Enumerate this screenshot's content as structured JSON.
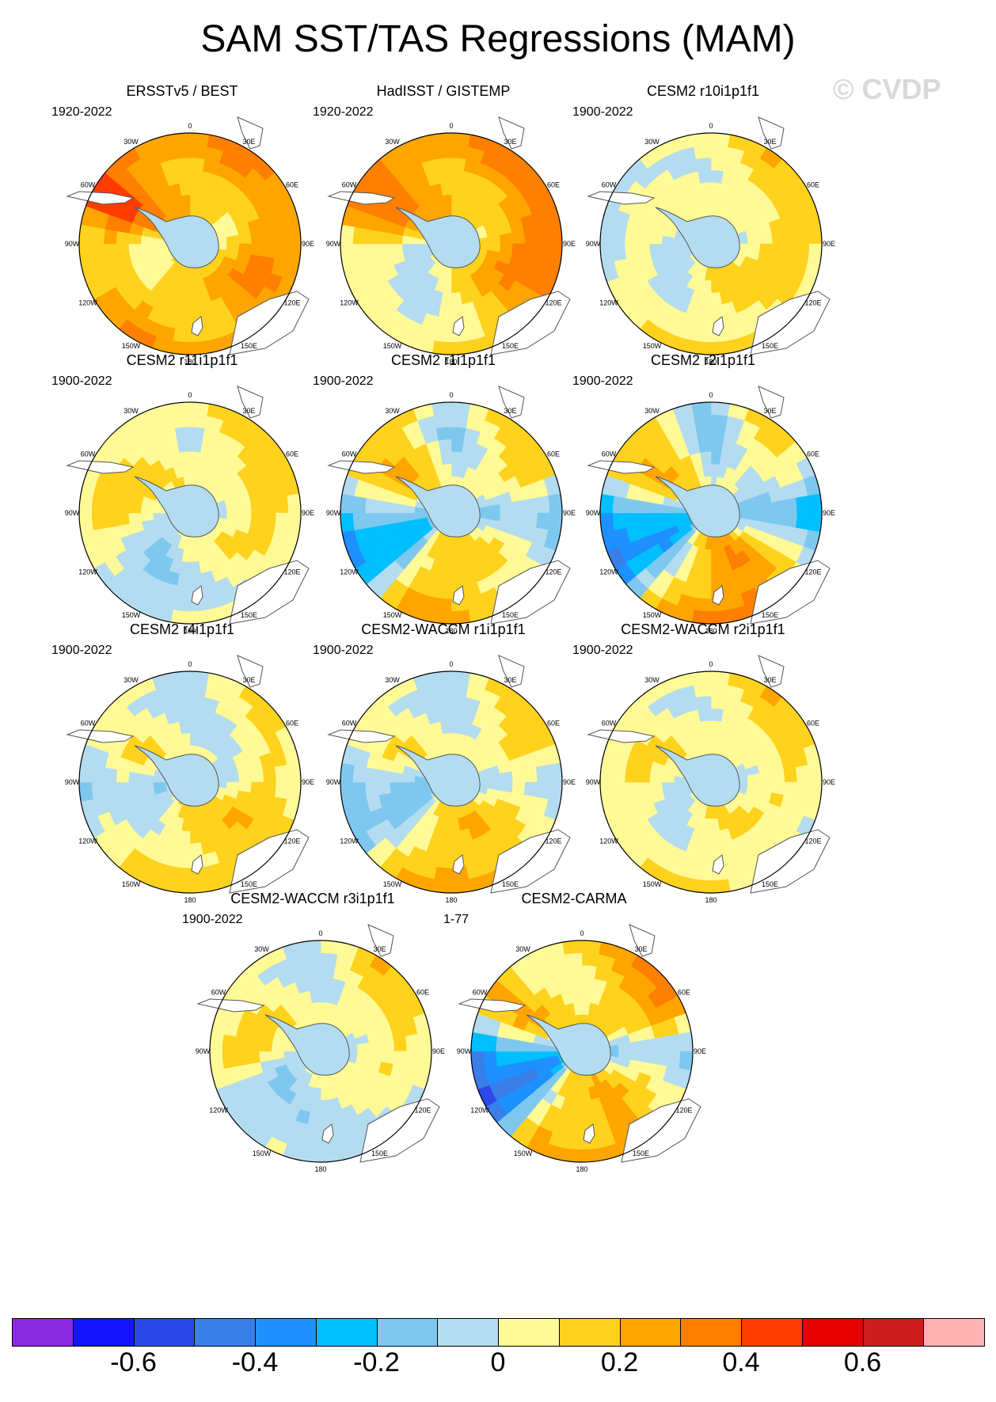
{
  "title": "SAM SST/TAS Regressions (MAM)",
  "watermark": "© CVDP",
  "chart_data": {
    "type": "polar-contour-map",
    "title": "SAM SST/TAS Regressions (MAM)",
    "projection": "south-polar-stereographic",
    "lon_labels": [
      "0",
      "30E",
      "60E",
      "90E",
      "120E",
      "150E",
      "180",
      "150W",
      "120W",
      "90W",
      "60W",
      "30W"
    ],
    "panels": [
      {
        "name": "ERSSTv5 / BEST",
        "period": "1920-2022",
        "field": [
          0.25,
          0.3,
          0.2,
          0.25,
          0.35,
          0.25,
          0.2,
          0.25,
          0.15,
          0.1,
          0.5,
          0.3
        ]
      },
      {
        "name": "HadISST / GISTEMP",
        "period": "1920-2022",
        "field": [
          0.25,
          0.3,
          0.25,
          0.3,
          0.35,
          0.2,
          0.1,
          0.0,
          0.0,
          0.05,
          0.45,
          0.3
        ]
      },
      {
        "name": "CESM2 r10i1p1f1",
        "period": "1900-2022",
        "field": [
          0.05,
          0.15,
          0.1,
          0.1,
          0.15,
          0.15,
          0.1,
          0.05,
          0.0,
          -0.05,
          0.05,
          0.05
        ]
      },
      {
        "name": "CESM2 r11i1p1f1",
        "period": "1900-2022",
        "field": [
          0.05,
          0.1,
          0.15,
          0.05,
          0.1,
          0.05,
          0.0,
          -0.1,
          -0.05,
          0.1,
          0.15,
          0.1
        ]
      },
      {
        "name": "CESM2 r1i1p1f1",
        "period": "1900-2022",
        "field": [
          -0.1,
          0.1,
          0.15,
          -0.2,
          0.05,
          0.15,
          0.25,
          0.2,
          -0.4,
          -0.2,
          0.25,
          0.2
        ]
      },
      {
        "name": "CESM2 r2i1p1f1",
        "period": "1900-2022",
        "field": [
          -0.15,
          0.1,
          0.0,
          -0.3,
          0.1,
          0.4,
          0.3,
          0.15,
          -0.45,
          -0.3,
          0.25,
          0.15
        ]
      },
      {
        "name": "CESM2 r4i1p1f1",
        "period": "1900-2022",
        "field": [
          -0.05,
          0.05,
          0.05,
          0.05,
          0.2,
          0.2,
          0.15,
          0.1,
          -0.05,
          -0.1,
          0.1,
          0.05
        ]
      },
      {
        "name": "CESM2-WACCM r1i1p1f1",
        "period": "1900-2022",
        "field": [
          -0.05,
          0.1,
          0.15,
          -0.1,
          0.1,
          0.25,
          0.25,
          0.15,
          -0.2,
          -0.15,
          0.1,
          0.05
        ]
      },
      {
        "name": "CESM2-WACCM r2i1p1f1",
        "period": "1900-2022",
        "field": [
          0.05,
          0.15,
          0.1,
          0.05,
          0.05,
          0.1,
          0.1,
          0.05,
          0.0,
          0.05,
          0.1,
          0.05
        ]
      },
      {
        "name": "CESM2-WACCM r3i1p1f1",
        "period": "1900-2022",
        "field": [
          -0.05,
          0.15,
          0.1,
          0.05,
          0.05,
          0.0,
          -0.05,
          -0.05,
          -0.1,
          0.1,
          0.1,
          0.05
        ]
      },
      {
        "name": "CESM2-CARMA",
        "period": "1-77",
        "field": [
          0.1,
          0.25,
          0.25,
          -0.15,
          0.1,
          0.3,
          0.2,
          0.2,
          -0.55,
          -0.35,
          0.3,
          0.1
        ]
      }
    ],
    "colorbar": {
      "boundaries": [
        -0.7,
        -0.6,
        -0.5,
        -0.4,
        -0.3,
        -0.2,
        -0.1,
        0,
        0.1,
        0.2,
        0.3,
        0.4,
        0.5,
        0.6,
        0.7
      ],
      "colors": [
        "#8a2be2",
        "#1414ff",
        "#2c48e8",
        "#3a7ee8",
        "#1e90ff",
        "#00bfff",
        "#7ec8f0",
        "#b4dcf0",
        "#fffa96",
        "#ffd21e",
        "#ffa500",
        "#ff7f00",
        "#ff3c00",
        "#e60000",
        "#cc1e1e",
        "#ffb4b4"
      ],
      "tick_labels": [
        "-0.6",
        "-0.4",
        "-0.2",
        "0",
        "0.2",
        "0.4",
        "0.6"
      ],
      "tick_values": [
        -0.6,
        -0.4,
        -0.2,
        0,
        0.2,
        0.4,
        0.6
      ]
    }
  }
}
